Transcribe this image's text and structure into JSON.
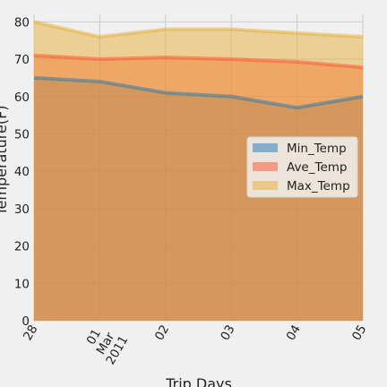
{
  "chart_data": {
    "type": "area",
    "title": "",
    "xlabel": "Trip Days",
    "ylabel": "Temperature(F)",
    "x": [
      "2011-02-28",
      "2011-03-01",
      "2011-03-02",
      "2011-03-03",
      "2011-03-04",
      "2011-03-05"
    ],
    "x_tick_labels": [
      "28",
      "01\nMar\n2011",
      "02",
      "03",
      "04",
      "05"
    ],
    "ylim": [
      0,
      82
    ],
    "y_ticks": [
      0,
      10,
      20,
      30,
      40,
      50,
      60,
      70,
      80
    ],
    "stacked": false,
    "grid": true,
    "legend_position": "center-right",
    "series": [
      {
        "name": "Min_Temp",
        "values": [
          65,
          64,
          61,
          60,
          57,
          60
        ],
        "color": "#1f77b4"
      },
      {
        "name": "Ave_Temp",
        "values": [
          71,
          70,
          70.5,
          70,
          69.3,
          67.8
        ],
        "color": "#fc4f30"
      },
      {
        "name": "Max_Temp",
        "values": [
          80,
          76,
          78,
          78,
          77,
          76
        ],
        "color": "#e5ae38"
      }
    ]
  }
}
